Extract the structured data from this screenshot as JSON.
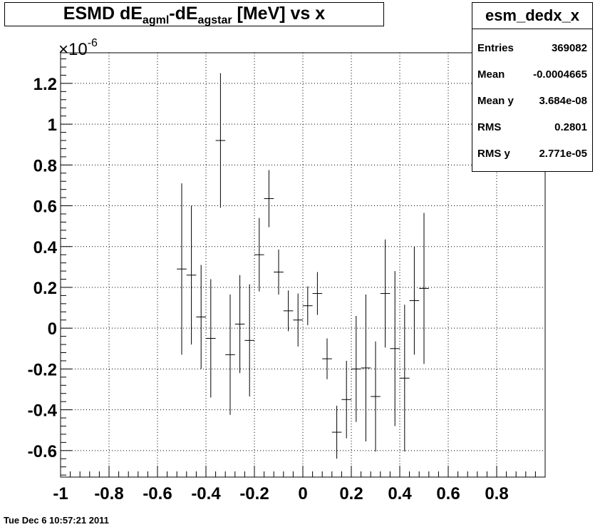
{
  "chart_data": {
    "type": "scatter",
    "title_parts": [
      "ESMD dE",
      "agml",
      "-dE",
      "agstar",
      " [MeV] vs x"
    ],
    "y_exponent_base": "×10",
    "y_exponent": "-6",
    "xlim": [
      -1,
      1
    ],
    "ylim": [
      -0.73,
      1.35
    ],
    "x_ticks": [
      -1,
      -0.8,
      -0.6,
      -0.4,
      -0.2,
      0,
      0.2,
      0.4,
      0.6,
      0.8
    ],
    "x_tick_labels": [
      "-1",
      "-0.8",
      "-0.6",
      "-0.4",
      "-0.2",
      "0",
      "0.2",
      "0.4",
      "0.6",
      "0.8"
    ],
    "y_ticks": [
      -0.6,
      -0.4,
      -0.2,
      0,
      0.2,
      0.4,
      0.6,
      0.8,
      1,
      1.2
    ],
    "y_tick_labels": [
      "-0.6",
      "-0.4",
      "-0.2",
      "0",
      "0.2",
      "0.4",
      "0.6",
      "0.8",
      "1",
      "1.2"
    ],
    "grid": true,
    "bin_half_width": 0.02,
    "points": [
      {
        "x": -0.5,
        "y": 0.29,
        "err": 0.42
      },
      {
        "x": -0.46,
        "y": 0.26,
        "err": 0.34
      },
      {
        "x": -0.42,
        "y": 0.055,
        "err": 0.255
      },
      {
        "x": -0.38,
        "y": -0.05,
        "err": 0.29
      },
      {
        "x": -0.3,
        "y": -0.13,
        "err": 0.295
      },
      {
        "x": -0.34,
        "y": 0.92,
        "err": 0.33
      },
      {
        "x": -0.26,
        "y": 0.02,
        "err": 0.24
      },
      {
        "x": -0.22,
        "y": -0.06,
        "err": 0.275
      },
      {
        "x": -0.18,
        "y": 0.36,
        "err": 0.18
      },
      {
        "x": -0.14,
        "y": 0.635,
        "err": 0.14
      },
      {
        "x": -0.1,
        "y": 0.275,
        "err": 0.11
      },
      {
        "x": -0.06,
        "y": 0.085,
        "err": 0.1
      },
      {
        "x": -0.02,
        "y": 0.04,
        "err": 0.13
      },
      {
        "x": 0.02,
        "y": 0.11,
        "err": 0.095
      },
      {
        "x": 0.06,
        "y": 0.17,
        "err": 0.105
      },
      {
        "x": 0.1,
        "y": -0.15,
        "err": 0.1
      },
      {
        "x": 0.14,
        "y": -0.51,
        "err": 0.13
      },
      {
        "x": 0.18,
        "y": -0.35,
        "err": 0.19
      },
      {
        "x": 0.22,
        "y": -0.2,
        "err": 0.26
      },
      {
        "x": 0.26,
        "y": -0.195,
        "err": 0.36
      },
      {
        "x": 0.3,
        "y": -0.335,
        "err": 0.27
      },
      {
        "x": 0.34,
        "y": 0.17,
        "err": 0.265
      },
      {
        "x": 0.38,
        "y": -0.1,
        "err": 0.38
      },
      {
        "x": 0.42,
        "y": -0.245,
        "err": 0.36
      },
      {
        "x": 0.46,
        "y": 0.135,
        "err": 0.265
      },
      {
        "x": 0.5,
        "y": 0.195,
        "err": 0.37
      }
    ]
  },
  "stats": {
    "name": "esm_dedx_x",
    "rows": [
      {
        "key": "Entries",
        "value": "369082"
      },
      {
        "key": "Mean",
        "value": "-0.0004665"
      },
      {
        "key": "Mean y",
        "value": "3.684e-08"
      },
      {
        "key": "RMS",
        "value": "0.2801"
      },
      {
        "key": "RMS y",
        "value": "2.771e-05"
      }
    ]
  },
  "timestamp": "Tue Dec  6 10:57:21 2011"
}
